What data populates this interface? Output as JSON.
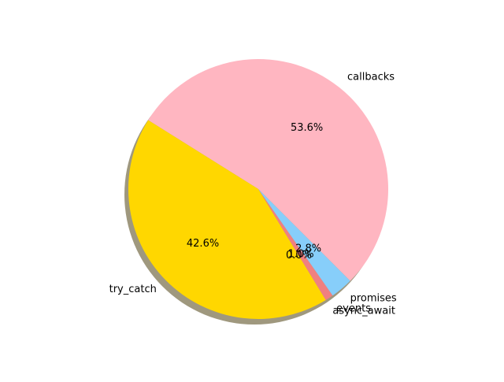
{
  "chart_data": {
    "type": "pie",
    "title": "",
    "start_angle_deg": -45,
    "direction": "counterclockwise",
    "shadow": true,
    "slices": [
      {
        "label": "callbacks",
        "percent": 53.6,
        "percent_label": "53.6%",
        "color": "#FFB6C1"
      },
      {
        "label": "try_catch",
        "percent": 42.6,
        "percent_label": "42.6%",
        "color": "#FFD700"
      },
      {
        "label": "async_await",
        "percent": 0.0,
        "percent_label": "0.0%",
        "color": "#98FB98"
      },
      {
        "label": "events",
        "percent": 1.0,
        "percent_label": "1.0%",
        "color": "#F08080"
      },
      {
        "label": "promises",
        "percent": 2.8,
        "percent_label": "2.8%",
        "color": "#87CEFA"
      }
    ]
  }
}
